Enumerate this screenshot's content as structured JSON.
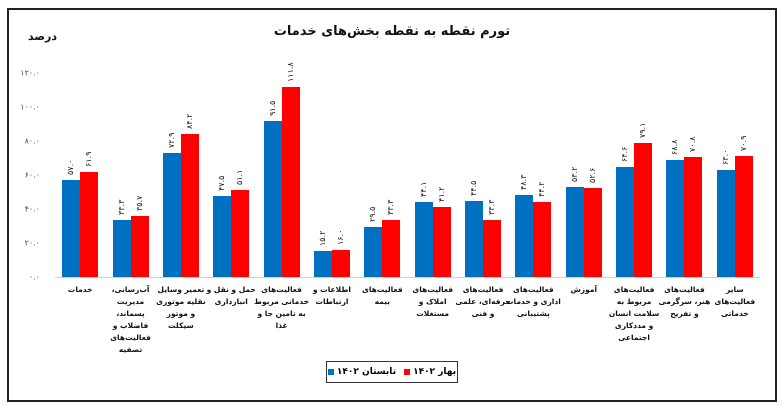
{
  "chart_data": {
    "type": "bar",
    "title": "تورم نقطه به نقطه بخش‌های خدمات",
    "ylabel": "درصد",
    "xlabel": "",
    "ylim": [
      0,
      120
    ],
    "yticks": [
      "۰.۰",
      "۲۰.۰",
      "۴۰.۰",
      "۶۰.۰",
      "۸۰.۰",
      "۱۰۰.۰",
      "۱۲۰.۰"
    ],
    "grid": false,
    "legend_position": "bottom",
    "categories": [
      "خدمات",
      "آب‌رسانی، مدیریت پسماند، فاضلاب و فعالیت‌های تصفیه",
      "تعمیر وسایل نقلیه موتوری و موتور سیکلت",
      "حمل و نقل و انبارداری",
      "فعالیت‌های خدماتی مربوط به تامین جا و غذا",
      "اطلاعات و ارتباطات",
      "فعالیت‌های بیمه",
      "فعالیت‌های املاک و مستغلات",
      "فعالیت‌های حرفه‌ای، علمی و فنی",
      "فعالیت‌های اداری و خدمات پشتیبانی",
      "آموزش",
      "فعالیت‌های مربوط به سلامت انسان و مددکاری اجتماعی",
      "فعالیت‌های هنر، سرگرمی و تفریح",
      "سایر فعالیت‌های خدماتی"
    ],
    "series": [
      {
        "name": "تابستان ۱۴۰۲",
        "color": "#0070c0",
        "values": [
          57.0,
          33.3,
          72.9,
          47.5,
          91.5,
          15.2,
          29.5,
          44.1,
          44.5,
          48.3,
          53.2,
          64.6,
          68.8,
          63.0
        ],
        "labels": [
          "۵۷.۰",
          "۳۳.۳",
          "۷۲.۹",
          "۴۷.۵",
          "۹۱.۵",
          "۱۵.۲",
          "۲۹.۵",
          "۴۴.۱",
          "۴۴.۵",
          "۴۸.۳",
          "۵۳.۲",
          "۶۴.۶",
          "۶۸.۸",
          "۶۳.۰"
        ]
      },
      {
        "name": "بهار ۱۴۰۲",
        "color": "#ff0000",
        "values": [
          61.9,
          35.7,
          84.2,
          51.1,
          111.8,
          16.0,
          33.3,
          41.2,
          33.3,
          44.2,
          52.6,
          79.1,
          70.8,
          70.9
        ],
        "labels": [
          "۶۱.۹",
          "۳۵.۷",
          "۸۴.۲",
          "۵۱.۱",
          "۱۱۱.۸",
          "۱۶.۰",
          "۳۳.۳",
          "۴۱.۲",
          "۳۳.۳",
          "۴۴.۲",
          "۵۲.۶",
          "۷۹.۱",
          "۷۰.۸",
          "۷۰.۹"
        ]
      }
    ]
  },
  "legend": {
    "spring": "بهار ۱۴۰۲",
    "summer": "تابستان ۱۴۰۲"
  }
}
